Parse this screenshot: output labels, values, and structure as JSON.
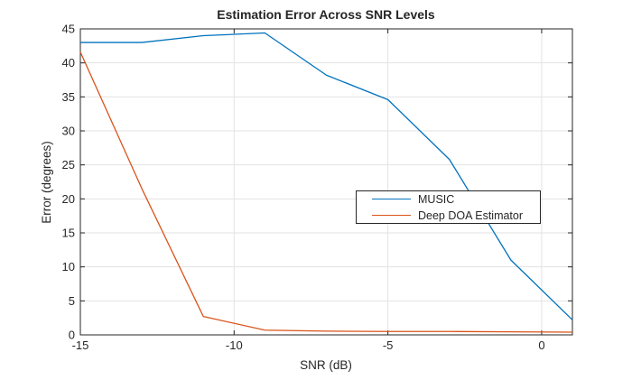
{
  "chart_data": {
    "type": "line",
    "title": "Estimation Error Across SNR Levels",
    "xlabel": "SNR (dB)",
    "ylabel": "Error (degrees)",
    "x": [
      -15,
      -13,
      -11,
      -9,
      -7,
      -5,
      -3,
      -1,
      1
    ],
    "series": [
      {
        "name": "MUSIC",
        "color": "#0072BD",
        "values": [
          43.0,
          43.0,
          44.0,
          44.4,
          38.2,
          34.6,
          25.8,
          11.0,
          2.2
        ]
      },
      {
        "name": "Deep DOA Estimator",
        "color": "#D95319",
        "values": [
          41.6,
          21.5,
          2.7,
          0.7,
          0.55,
          0.5,
          0.5,
          0.45,
          0.4
        ]
      }
    ],
    "xlim": [
      -15,
      1
    ],
    "ylim": [
      0,
      45
    ],
    "xticks": [
      -15,
      -10,
      -5,
      0
    ],
    "yticks": [
      0,
      5,
      10,
      15,
      20,
      25,
      30,
      35,
      40,
      45
    ],
    "grid": true,
    "legend": {
      "position": "center-right",
      "entries": [
        "MUSIC",
        "Deep DOA Estimator"
      ]
    },
    "colors": {
      "axis": "#262626",
      "grid": "#e3e3e3",
      "text": "#262626",
      "background": "#ffffff"
    }
  }
}
